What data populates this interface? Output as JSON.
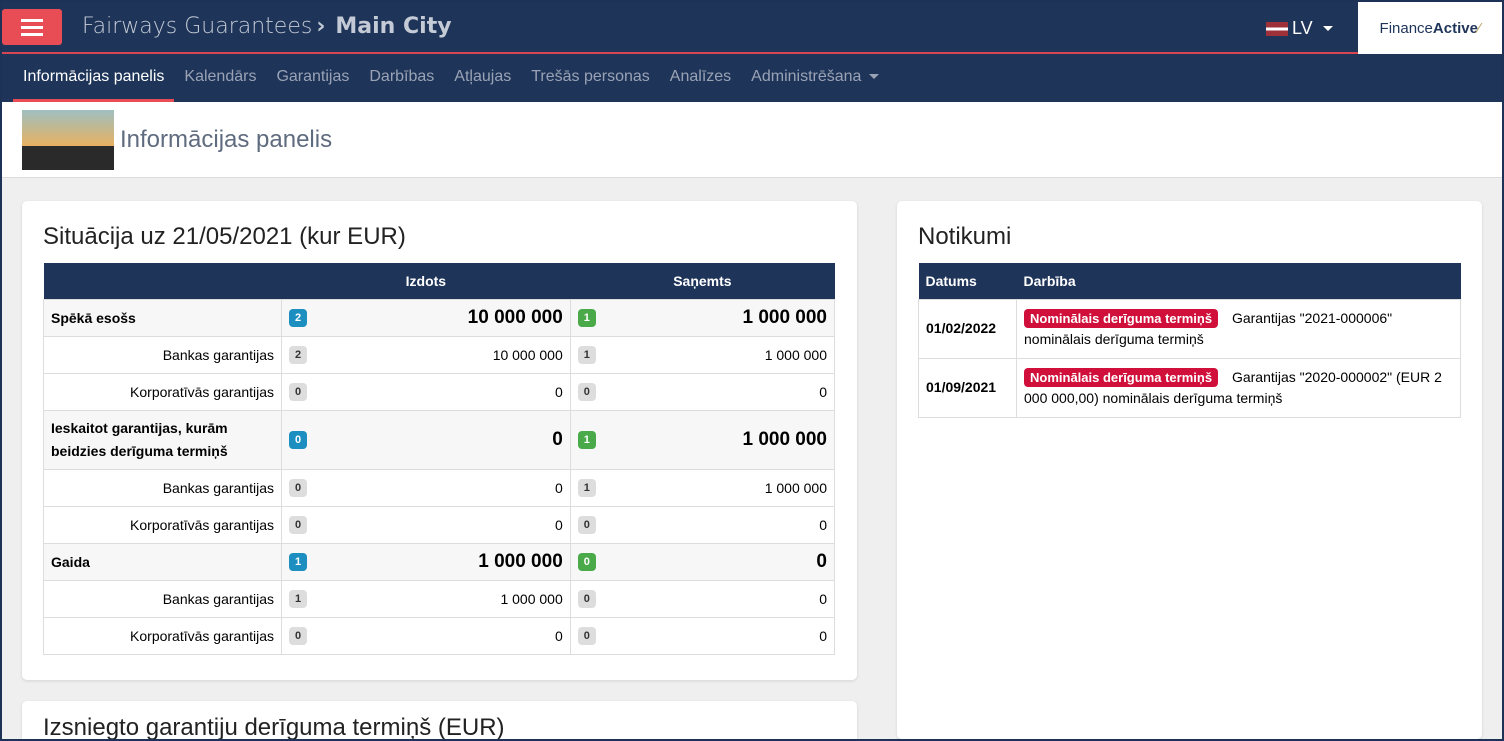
{
  "topbar": {
    "brand": "Fairways Guarantees",
    "entity": "Main City",
    "language": "LV",
    "logo": "FinanceActive"
  },
  "nav": [
    "Informācijas panelis",
    "Kalendārs",
    "Garantijas",
    "Darbības",
    "Atļaujas",
    "Trešās personas",
    "Analīzes",
    "Administrēšana"
  ],
  "page_title": "Informācijas panelis",
  "situation": {
    "title": "Situācija uz 21/05/2021 (kur EUR)",
    "headers": [
      "",
      "Izdots",
      "Saņemts"
    ],
    "rows": [
      {
        "label": "Spēkā esošs",
        "group": true,
        "ic": "2",
        "iv": "10 000 000",
        "rc": "1",
        "rv": "1 000 000"
      },
      {
        "label": "Bankas garantijas",
        "ic": "2",
        "iv": "10 000 000",
        "rc": "1",
        "rv": "1 000 000"
      },
      {
        "label": "Korporatīvās garantijas",
        "ic": "0",
        "iv": "0",
        "rc": "0",
        "rv": "0"
      },
      {
        "label": "Ieskaitot garantijas, kurām beidzies derīguma termiņš",
        "group": true,
        "ic": "0",
        "iv": "0",
        "rc": "1",
        "rv": "1 000 000"
      },
      {
        "label": "Bankas garantijas",
        "ic": "0",
        "iv": "0",
        "rc": "1",
        "rv": "1 000 000"
      },
      {
        "label": "Korporatīvās garantijas",
        "ic": "0",
        "iv": "0",
        "rc": "0",
        "rv": "0"
      },
      {
        "label": "Gaida",
        "group": true,
        "ic": "1",
        "iv": "1 000 000",
        "rc": "0",
        "rv": "0"
      },
      {
        "label": "Bankas garantijas",
        "ic": "1",
        "iv": "1 000 000",
        "rc": "0",
        "rv": "0"
      },
      {
        "label": "Korporatīvās garantijas",
        "ic": "0",
        "iv": "0",
        "rc": "0",
        "rv": "0"
      }
    ]
  },
  "events": {
    "title": "Notikumi",
    "headers": [
      "Datums",
      "Darbība"
    ],
    "rows": [
      {
        "date": "01/02/2022",
        "tag": "Nominālais derīguma termiņš",
        "text": "Garantijas \"2021-000006\" nominālais derīguma termiņš"
      },
      {
        "date": "01/09/2021",
        "tag": "Nominālais derīguma termiņš",
        "text": "Garantijas \"2020-000002\" (EUR 2 000 000,00) nominālais derīguma termiņš"
      }
    ]
  },
  "expiry_title": "Izsniegto garantiju derīguma termiņš (EUR)"
}
